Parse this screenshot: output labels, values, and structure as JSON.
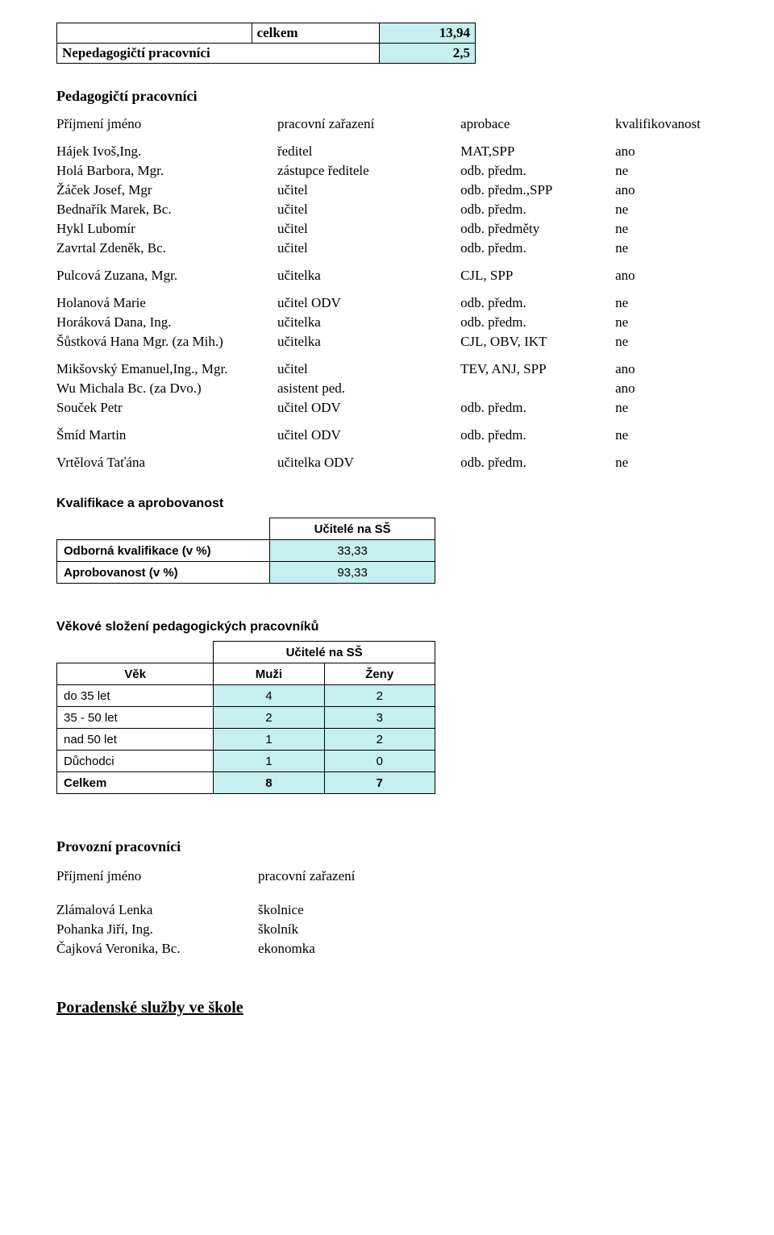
{
  "summary": {
    "row1_c2": "celkem",
    "row1_c3": "13,94",
    "row2_c1": "Nepedagogičtí pracovníci",
    "row2_c3": "2,5"
  },
  "section_ped": "Pedagogičtí pracovníci",
  "staff_header": {
    "c1": "Příjmení jméno",
    "c2": "pracovní zařazení",
    "c3": "aprobace",
    "c4": "kvalifikovanost"
  },
  "staff": [
    {
      "n": "Hájek Ivoš,Ing.",
      "p": "ředitel",
      "a": "MAT,SPP",
      "k": "ano"
    },
    {
      "n": "Holá Barbora, Mgr.",
      "p": "zástupce ředitele",
      "a": "odb. předm.",
      "k": "ne"
    },
    {
      "n": "Žáček Josef, Mgr",
      "p": "učitel",
      "a": "odb. předm.,SPP",
      "k": "ano"
    },
    {
      "n": "Bednařík Marek, Bc.",
      "p": "učitel",
      "a": "odb. předm.",
      "k": "ne"
    },
    {
      "n": "Hykl Lubomír",
      "p": "učitel",
      "a": "odb. předměty",
      "k": "ne"
    },
    {
      "n": "Zavrtal Zdeněk, Bc.",
      "p": "učitel",
      "a": "odb. předm.",
      "k": "ne"
    },
    {
      "n": "Pulcová Zuzana, Mgr.",
      "p": "učitelka",
      "a": "CJL, SPP",
      "k": "ano"
    },
    {
      "n": "Holanová Marie",
      "p": "učitel ODV",
      "a": "odb. předm.",
      "k": "ne"
    },
    {
      "n": "Horáková Dana, Ing.",
      "p": "učitelka",
      "a": "odb. předm.",
      "k": "ne"
    },
    {
      "n": "Šůstková Hana Mgr. (za Mih.)",
      "p": "učitelka",
      "a": "CJL, OBV, IKT",
      "k": "ne"
    },
    {
      "n": "Mikšovský Emanuel,Ing., Mgr.",
      "p": "učitel",
      "a": "TEV, ANJ, SPP",
      "k": "ano"
    },
    {
      "n": "Wu Michala Bc. (za Dvo.)",
      "p": "asistent ped.",
      "a": "",
      "k": "ano"
    },
    {
      "n": "Souček Petr",
      "p": "učitel ODV",
      "a": "odb. předm.",
      "k": "ne"
    },
    {
      "n": "Šmíd Martin",
      "p": "učitel ODV",
      "a": "odb. předm.",
      "k": "ne"
    },
    {
      "n": "Vrtělová Taťána",
      "p": "učitelka ODV",
      "a": "odb. předm.",
      "k": "ne"
    }
  ],
  "kval_title": "Kvalifikace a aprobovanost",
  "kval": {
    "header_r": "Učitelé na SŠ",
    "r1_l": "Odborná kvalifikace (v %)",
    "r1_r": "33,33",
    "r2_l": "Aprobovanost (v %)",
    "r2_r": "93,33"
  },
  "age_title": "Věkové složení pedagogických pracovníků",
  "age": {
    "header_span": "Učitelé na SŠ",
    "col1": "Věk",
    "col2": "Muži",
    "col3": "Ženy",
    "rows": [
      {
        "l": "do 35 let",
        "m": "4",
        "z": "2"
      },
      {
        "l": "35 - 50 let",
        "m": "2",
        "z": "3"
      },
      {
        "l": "nad 50 let",
        "m": "1",
        "z": "2"
      },
      {
        "l": "Důchodci",
        "m": "1",
        "z": "0"
      },
      {
        "l": "Celkem",
        "m": "8",
        "z": "7"
      }
    ]
  },
  "ops_title": "Provozní pracovníci",
  "ops_header": {
    "c1": "Příjmení jméno",
    "c2": "pracovní zařazení"
  },
  "ops": [
    {
      "n": "Zlámalová Lenka",
      "p": "školnice"
    },
    {
      "n": "Pohanka Jiří, Ing.",
      "p": "školník"
    },
    {
      "n": "Čajková Veronika, Bc.",
      "p": "ekonomka"
    }
  ],
  "advisory_title": "Poradenské služby ve škole"
}
